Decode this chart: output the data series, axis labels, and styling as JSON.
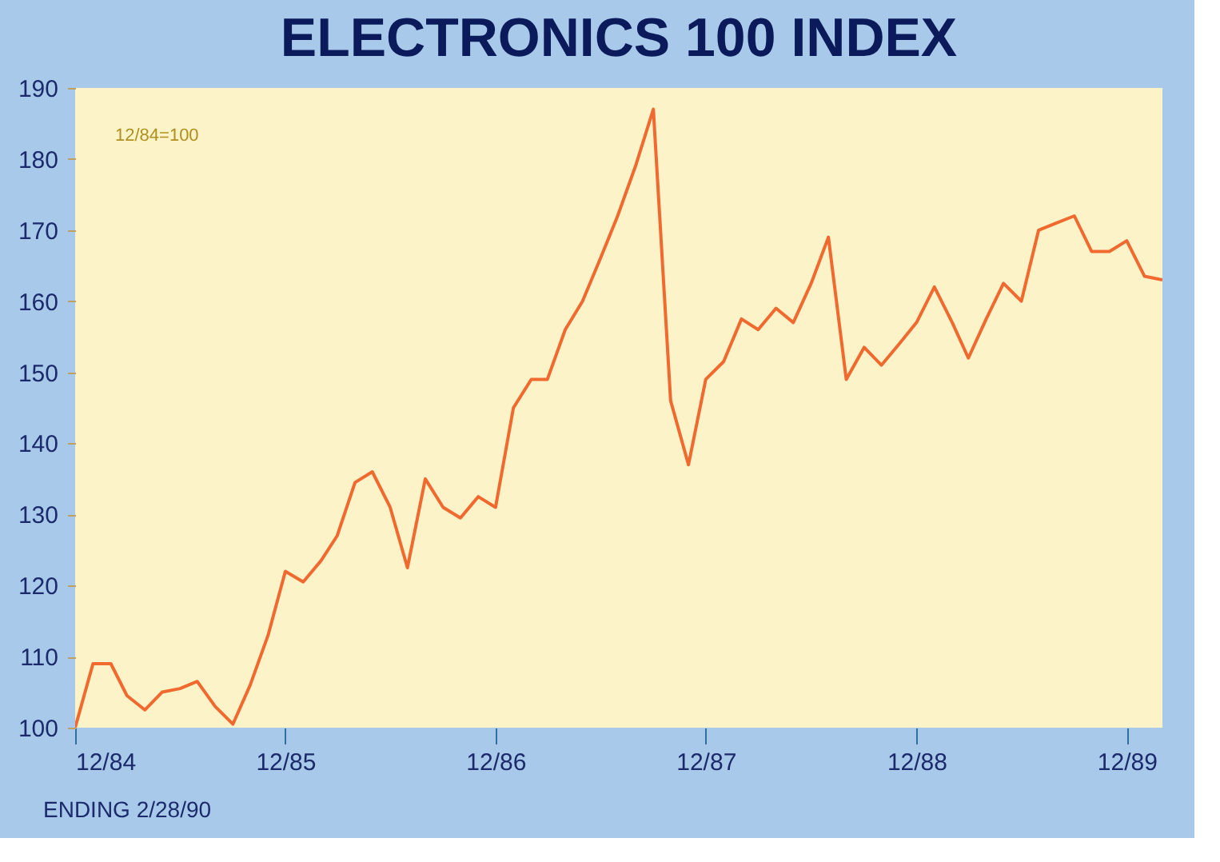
{
  "chart_data": {
    "type": "line",
    "title": "ELECTRONICS 100 INDEX",
    "annotations": [
      "12/84=100",
      "ENDING 2/28/90"
    ],
    "x": [
      "1984-12",
      "1985-01",
      "1985-02",
      "1985-03",
      "1985-04",
      "1985-05",
      "1985-06",
      "1985-07",
      "1985-08",
      "1985-09",
      "1985-10",
      "1985-11",
      "1985-12",
      "1986-01",
      "1986-02",
      "1986-03",
      "1986-04",
      "1986-05",
      "1986-06",
      "1986-07",
      "1986-08",
      "1986-09",
      "1986-10",
      "1986-11",
      "1986-12",
      "1987-01",
      "1987-02",
      "1987-03",
      "1987-04",
      "1987-05",
      "1987-06",
      "1987-07",
      "1987-08",
      "1987-09",
      "1987-10",
      "1987-11",
      "1987-12",
      "1988-01",
      "1988-02",
      "1988-03",
      "1988-04",
      "1988-05",
      "1988-06",
      "1988-07",
      "1988-08",
      "1988-09",
      "1988-10",
      "1988-11",
      "1988-12",
      "1989-01",
      "1989-02",
      "1989-03",
      "1989-04",
      "1989-05",
      "1989-06",
      "1989-07",
      "1989-08",
      "1989-09",
      "1989-10",
      "1989-11",
      "1989-12",
      "1990-01",
      "1990-02"
    ],
    "series": [
      {
        "color": "#f06a30",
        "values": [
          100,
          109,
          109,
          104.5,
          102.5,
          105,
          105.5,
          106.5,
          103,
          100.5,
          106,
          113,
          122,
          120.5,
          123.5,
          127,
          134.5,
          136,
          131,
          122.5,
          135,
          131,
          129.5,
          132.5,
          131,
          145,
          149,
          149,
          156,
          160,
          166,
          172,
          179,
          187,
          146,
          137,
          149,
          151.5,
          157.5,
          156,
          159,
          157,
          162.5,
          169,
          149,
          153.5,
          151,
          154,
          157,
          162,
          157,
          152,
          157.5,
          162.5,
          160,
          170,
          171,
          172,
          167,
          167,
          168.5,
          163.5,
          163
        ]
      }
    ],
    "xlim": [
      "1984-12",
      "1990-02"
    ],
    "xticks": [
      {
        "value": "1984-12",
        "label": "12/84"
      },
      {
        "value": "1985-12",
        "label": "12/85"
      },
      {
        "value": "1986-12",
        "label": "12/86"
      },
      {
        "value": "1987-12",
        "label": "12/87"
      },
      {
        "value": "1988-12",
        "label": "12/88"
      },
      {
        "value": "1989-12",
        "label": "12/89"
      }
    ],
    "ylim": [
      100,
      190
    ],
    "yticks": [
      100,
      110,
      120,
      130,
      140,
      150,
      160,
      170,
      180,
      190
    ],
    "grid": false,
    "legend": false,
    "marker": "none",
    "line_style": "solid"
  }
}
